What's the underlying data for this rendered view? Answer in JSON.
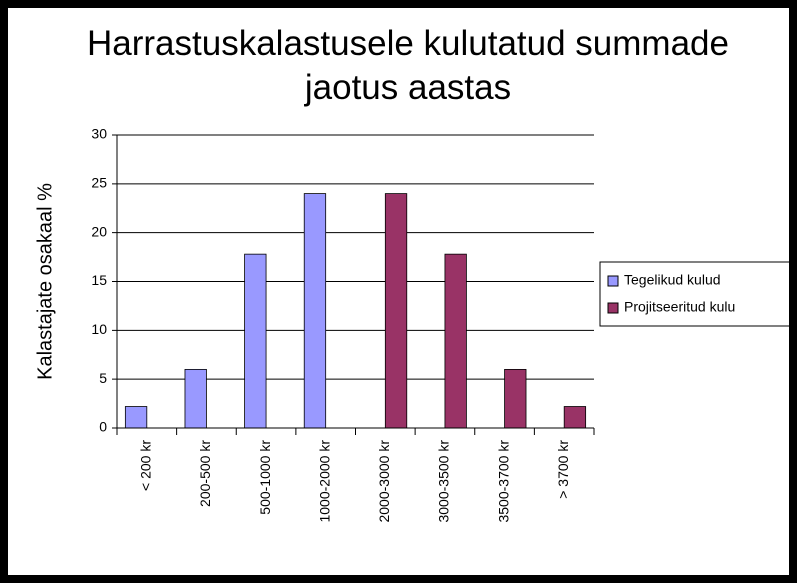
{
  "chart_data": {
    "type": "bar",
    "title": "Harrastuskalastusele kulutatud summade jaotus aastas",
    "y_label": "Kalastajate osakaal %",
    "categories": [
      "< 200 kr",
      "200-500 kr",
      "500-1000 kr",
      "1000-2000 kr",
      "2000-3000 kr",
      "3000-3500 kr",
      "3500-3700 kr",
      "> 3700 kr"
    ],
    "series": [
      {
        "name": "Tegelikud kulud",
        "color": "#9999ff",
        "values": [
          2.2,
          6,
          17.8,
          24,
          null,
          null,
          null,
          null
        ]
      },
      {
        "name": "Projitseeritud kulu",
        "color": "#993366",
        "values": [
          null,
          null,
          null,
          null,
          24,
          17.8,
          6,
          2.2
        ]
      }
    ],
    "ylim": [
      0,
      30
    ],
    "yticks": [
      0,
      5,
      10,
      15,
      20,
      25,
      30
    ],
    "grid": true,
    "legend": "right"
  }
}
